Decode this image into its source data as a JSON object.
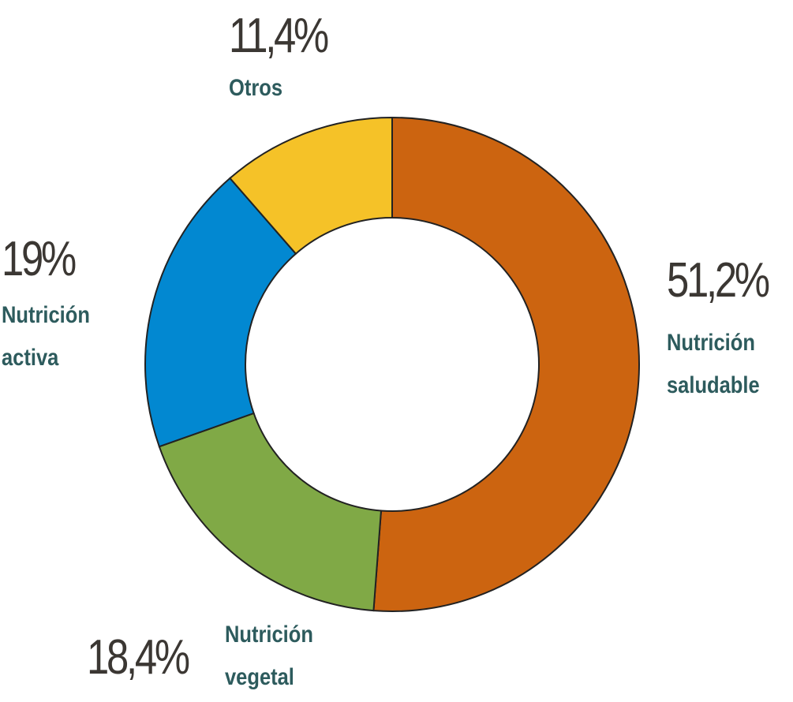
{
  "chart_data": {
    "type": "pie",
    "categories": [
      "Nutrición saludable",
      "Nutrición vegetal",
      "Nutrición activa",
      "Otros"
    ],
    "values": [
      51.2,
      18.4,
      19,
      11.4
    ],
    "value_labels": [
      "51,2%",
      "18,4%",
      "19%",
      "11,4%"
    ],
    "colors": [
      "#cc6410",
      "#80a946",
      "#0288d1",
      "#f5c228"
    ],
    "donut": true
  }
}
